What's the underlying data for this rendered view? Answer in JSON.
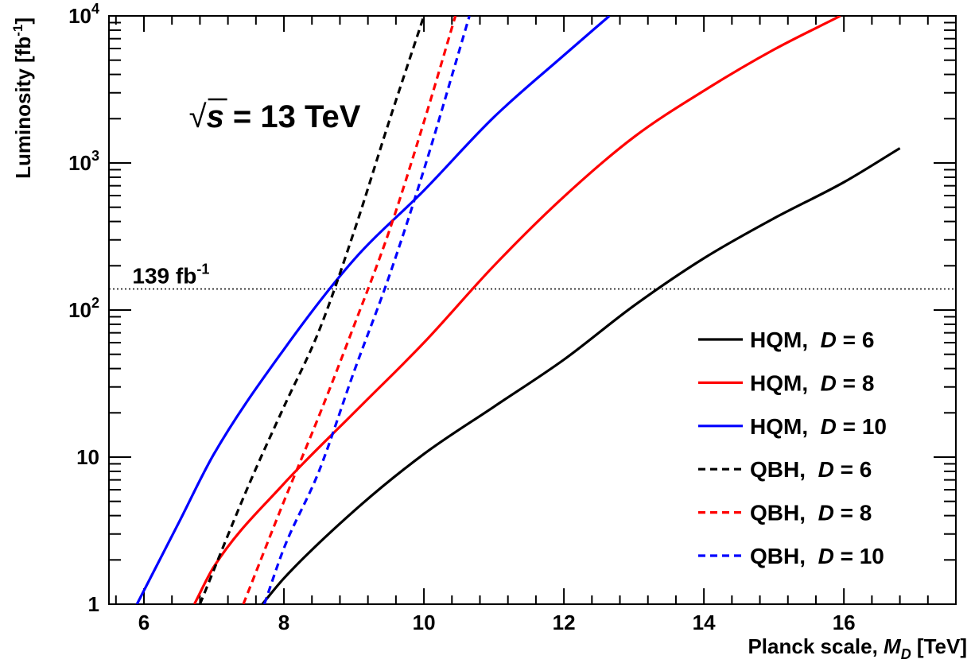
{
  "chart_data": {
    "type": "line",
    "title": "",
    "xlabel": "Planck scale, M_D [TeV]",
    "xlabel_parts": {
      "prefix": "Planck scale, ",
      "symbol": "M",
      "subscript": "D",
      "suffix": " [TeV]"
    },
    "ylabel": "Luminosity [fb^-1]",
    "ylabel_parts": {
      "main": "Luminosity [fb",
      "sup": "-1",
      "close": "]"
    },
    "xlim": [
      5.5,
      17.6
    ],
    "ylim": [
      1,
      10000
    ],
    "yscale": "log",
    "grid": false,
    "legend_position": "bottom-right",
    "x_ticks": [
      6,
      8,
      10,
      12,
      14,
      16
    ],
    "x_tick_labels": [
      "6",
      "8",
      "10",
      "12",
      "14",
      "16"
    ],
    "y_ticks": [
      1,
      10,
      100,
      1000,
      10000
    ],
    "y_tick_labels": [
      {
        "base": "1",
        "exp": ""
      },
      {
        "base": "10",
        "exp": ""
      },
      {
        "base": "10",
        "exp": "2"
      },
      {
        "base": "10",
        "exp": "3"
      },
      {
        "base": "10",
        "exp": "4"
      }
    ],
    "annotations": {
      "energy_sqrt": "√",
      "energy_symbol": "s",
      "energy_value": " = 13 TeV",
      "reference_line_value": 139,
      "reference_line_label": "139 fb",
      "reference_line_label_sup": "-1"
    },
    "series": [
      {
        "legend_prefix": "HQM,  ",
        "legend_var": "D",
        "legend_suffix": " = 6",
        "color": "#000000",
        "dash": false,
        "x": [
          7.69,
          8.0,
          9.0,
          10.0,
          11.0,
          12.0,
          13.0,
          14.0,
          15.0,
          16.0,
          16.8
        ],
        "y": [
          1.0,
          1.5,
          4.3,
          10.5,
          22,
          46,
          107,
          225,
          420,
          740,
          1260
        ]
      },
      {
        "legend_prefix": "HQM,  ",
        "legend_var": "D",
        "legend_suffix": " = 8",
        "color": "#ff0000",
        "dash": false,
        "x": [
          6.72,
          7.0,
          8.0,
          9.0,
          10.0,
          11.0,
          12.0,
          13.0,
          14.0,
          15.0,
          15.95
        ],
        "y": [
          1.0,
          1.8,
          6.6,
          20,
          60,
          200,
          590,
          1500,
          3100,
          5900,
          10000
        ]
      },
      {
        "legend_prefix": "HQM,  ",
        "legend_var": "D",
        "legend_suffix": " = 10",
        "color": "#0000ff",
        "dash": false,
        "x": [
          5.9,
          6.5,
          7.0,
          8.0,
          9.0,
          10.0,
          11.0,
          12.0,
          12.65
        ],
        "y": [
          1.0,
          3.6,
          10.5,
          54,
          220,
          650,
          2050,
          5400,
          10000
        ]
      },
      {
        "legend_prefix": "QBH,  ",
        "legend_var": "D",
        "legend_suffix": " = 6",
        "color": "#000000",
        "dash": true,
        "x": [
          6.8,
          7.5,
          8.0,
          8.5,
          9.0,
          9.5,
          10.0
        ],
        "y": [
          1.0,
          6.5,
          22,
          72,
          340,
          1900,
          10000
        ]
      },
      {
        "legend_prefix": "QBH,  ",
        "legend_var": "D",
        "legend_suffix": " = 8",
        "color": "#ff0000",
        "dash": true,
        "x": [
          7.42,
          8.0,
          8.5,
          9.0,
          9.5,
          10.0,
          10.45
        ],
        "y": [
          1.0,
          5.0,
          19,
          78,
          340,
          1900,
          10000
        ]
      },
      {
        "legend_prefix": "QBH,  ",
        "legend_var": "D",
        "legend_suffix": " = 10",
        "color": "#0000ff",
        "dash": true,
        "x": [
          7.72,
          8.0,
          8.5,
          9.0,
          9.5,
          10.0,
          10.5,
          10.65
        ],
        "y": [
          1.0,
          2.4,
          8.0,
          38,
          168,
          900,
          5700,
          10000
        ]
      }
    ]
  }
}
